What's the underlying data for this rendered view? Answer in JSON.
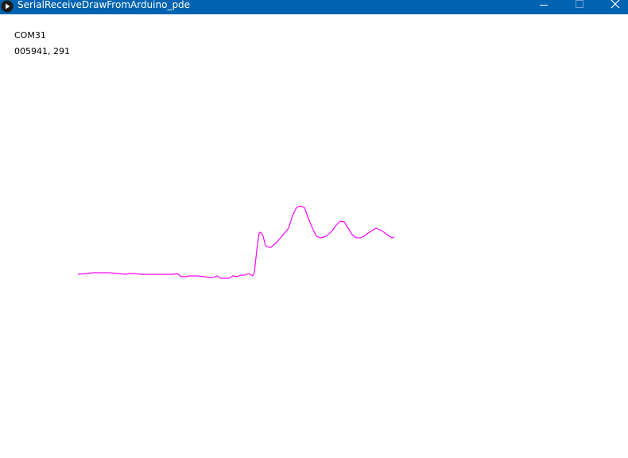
{
  "window": {
    "title": "SerialReceiveDrawFromArduino_pde",
    "title_bar_color": "#0063b1"
  },
  "sketch": {
    "port_label": "COM31",
    "reading_text": "005941, 291"
  },
  "chart_data": {
    "type": "line",
    "title": "",
    "xlabel": "",
    "ylabel": "",
    "series": [
      {
        "color": "#ff00ff",
        "x": [
          0,
          10,
          20,
          30,
          40,
          50,
          60,
          65,
          70,
          80,
          90,
          100,
          110,
          120,
          125,
          130,
          135,
          140,
          150,
          160,
          165,
          170,
          175,
          180,
          185,
          187,
          190,
          195,
          200,
          205,
          210,
          215,
          220,
          222,
          225,
          228,
          230,
          233,
          236,
          240,
          243,
          246,
          250,
          255,
          260,
          265,
          270,
          275,
          280,
          285,
          290,
          295,
          300,
          305,
          310,
          315,
          320,
          325,
          330,
          335,
          340,
          345,
          350,
          355,
          360,
          365,
          370,
          375,
          380,
          385,
          390,
          395,
          398
        ],
        "y": [
          0,
          1,
          2,
          2,
          2,
          1,
          0,
          1,
          1,
          0,
          0,
          0,
          0,
          0,
          1,
          -3,
          -3,
          -2,
          -2,
          -3,
          -4,
          -4,
          -2,
          -5,
          -5,
          -5,
          -5,
          -2,
          -3,
          -1,
          -1,
          1,
          -2,
          3,
          30,
          52,
          53,
          48,
          36,
          34,
          34,
          37,
          40,
          46,
          52,
          58,
          74,
          84,
          86,
          84,
          70,
          58,
          48,
          46,
          47,
          50,
          55,
          62,
          67,
          66,
          58,
          50,
          46,
          46,
          48,
          52,
          55,
          58,
          56,
          53,
          49,
          46,
          47
        ]
      }
    ]
  }
}
